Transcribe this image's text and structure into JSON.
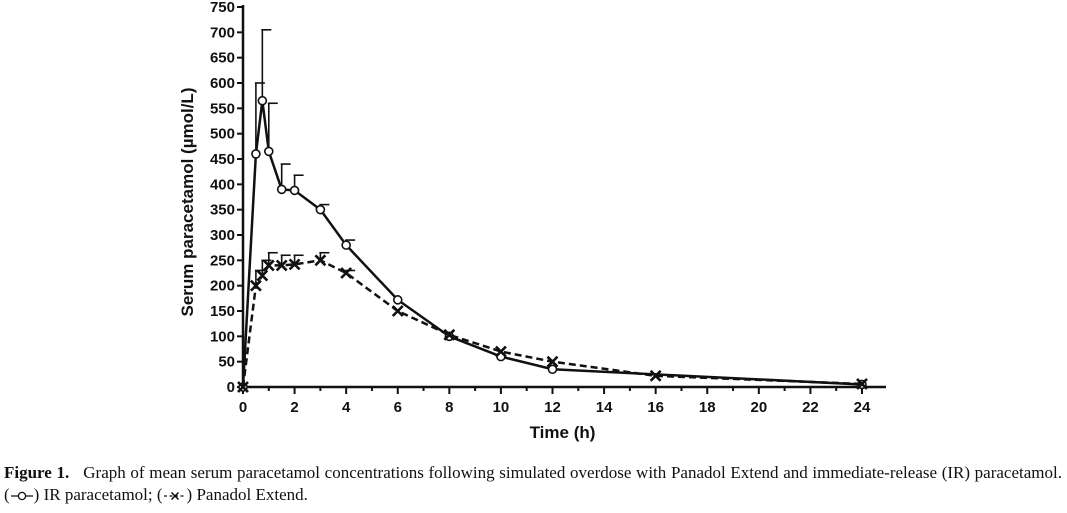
{
  "chart_data": {
    "type": "line",
    "xlabel": "Time (h)",
    "ylabel": "Serum paracetamol (µmol/L)",
    "xlim": [
      0,
      24
    ],
    "ylim": [
      0,
      750
    ],
    "x_ticks": [
      "0",
      "2",
      "4",
      "6",
      "8",
      "10",
      "12",
      "14",
      "16",
      "18",
      "20",
      "22",
      "24"
    ],
    "y_ticks": [
      "0",
      "50",
      "100",
      "150",
      "200",
      "250",
      "300",
      "350",
      "400",
      "450",
      "500",
      "550",
      "600",
      "650",
      "700",
      "750"
    ],
    "grid": false,
    "series": [
      {
        "marker": "circle",
        "line": "solid",
        "color": "#111111",
        "x": [
          0,
          0.5,
          0.75,
          1,
          1.5,
          2,
          3,
          4,
          6,
          8,
          10,
          12,
          24
        ],
        "y": [
          0,
          460,
          565,
          465,
          390,
          388,
          350,
          280,
          172,
          100,
          60,
          35,
          5
        ],
        "error": [
          0,
          140,
          140,
          95,
          50,
          30,
          10,
          10,
          0,
          0,
          0,
          0,
          0
        ]
      },
      {
        "marker": "x",
        "line": "dashed",
        "color": "#111111",
        "x": [
          0,
          0.5,
          0.75,
          1,
          1.5,
          2,
          3,
          4,
          6,
          8,
          10,
          12,
          16,
          24
        ],
        "y": [
          0,
          200,
          220,
          240,
          240,
          242,
          250,
          225,
          150,
          103,
          70,
          50,
          22,
          6
        ],
        "error": [
          0,
          30,
          30,
          25,
          20,
          18,
          15,
          5,
          0,
          0,
          0,
          0,
          0,
          0
        ]
      }
    ]
  },
  "caption": {
    "label": "Figure 1.",
    "text_before": "Graph of mean serum paracetamol concentrations following simulated overdose with Panadol Extend and immediate-release (IR) paracetamol. (",
    "ir_label": ") IR paracetamol; (",
    "extend_label": ") Panadol Extend."
  }
}
